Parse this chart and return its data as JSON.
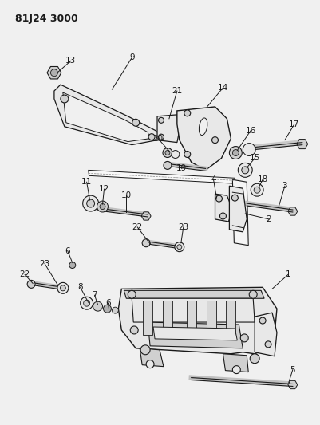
{
  "title": "81J24 3000",
  "bg_color": "#f0f0f0",
  "line_color": "#1a1a1a",
  "fill_light": "#e8e8e8",
  "fill_medium": "#d0d0d0",
  "fill_dark": "#b0b0b0",
  "figsize": [
    4.01,
    5.33
  ],
  "dpi": 100,
  "leader_lw": 0.7,
  "label_fontsize": 7.5
}
